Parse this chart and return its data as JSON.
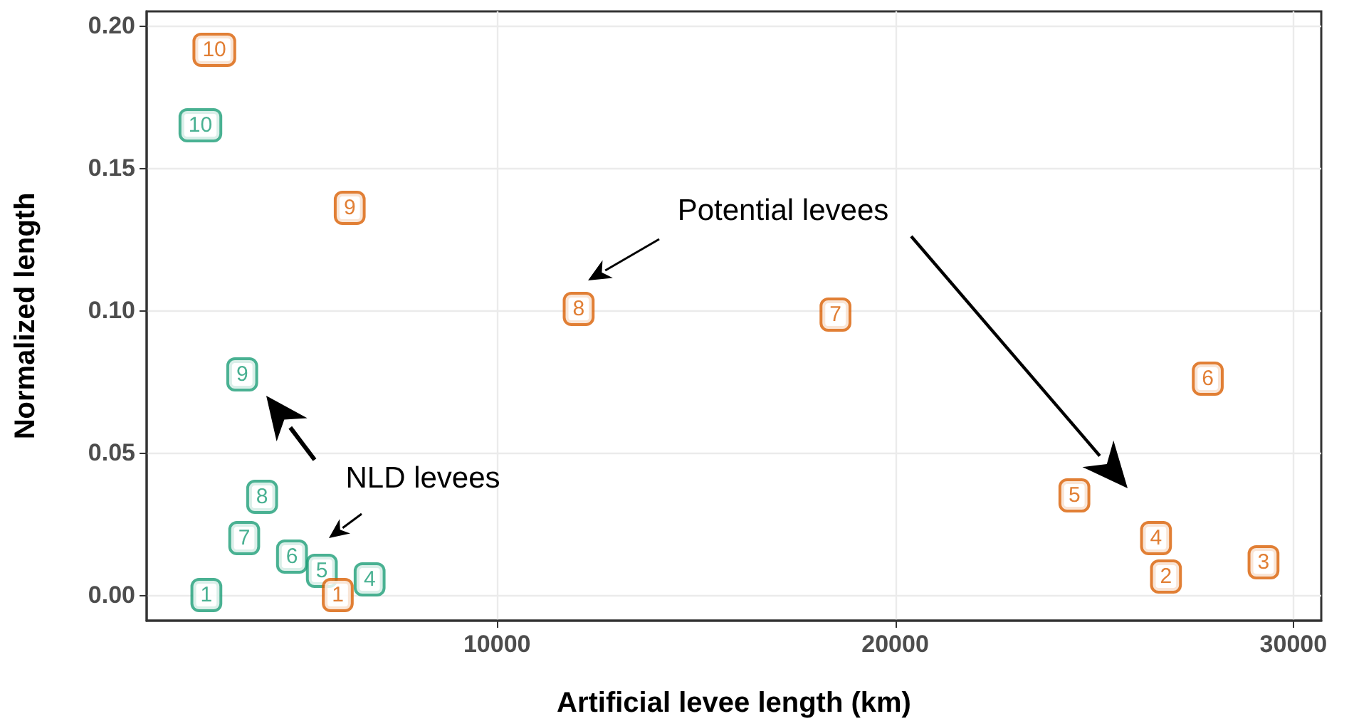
{
  "chart_data": {
    "type": "scatter",
    "xlabel": "Artificial levee length (km)",
    "ylabel": "Normalized length",
    "xlim": [
      1200,
      30700
    ],
    "xticks": [
      10000,
      20000,
      30000
    ],
    "ylim": [
      -0.009,
      0.205
    ],
    "yticks": [
      {
        "value": 0,
        "label": "0.00"
      },
      {
        "value": 0.05,
        "label": "0.05"
      },
      {
        "value": 0.1,
        "label": "0.10"
      },
      {
        "value": 0.15,
        "label": "0.15"
      },
      {
        "value": 0.2,
        "label": "0.20"
      }
    ],
    "grid": true,
    "legend": false,
    "marker": "square",
    "series": [
      {
        "name": "NLD levees",
        "color": "#1b9e77",
        "x": [
          2700,
          null,
          null,
          6800,
          5600,
          4850,
          3650,
          4100,
          3600,
          2550
        ],
        "values": [
          0.0,
          null,
          null,
          0.0055,
          0.0085,
          0.0135,
          0.02,
          0.0345,
          0.0775,
          0.165
        ]
      },
      {
        "name": "Potential levees",
        "color": "#d95f02",
        "x": [
          6000,
          26800,
          29250,
          26550,
          24500,
          27850,
          18500,
          12050,
          6300,
          2900
        ],
        "values": [
          0.0,
          0.0065,
          0.0115,
          0.02,
          0.035,
          0.076,
          0.0985,
          0.1005,
          0.136,
          0.1915
        ]
      }
    ],
    "annotations": [
      {
        "text": "1",
        "x": 2700,
        "y": 0.0
      },
      {
        "text": "4",
        "x": 6800,
        "y": 0.0055
      },
      {
        "text": "5",
        "x": 5600,
        "y": 0.0085
      },
      {
        "text": "6",
        "x": 4850,
        "y": 0.0135
      },
      {
        "text": "7",
        "x": 3650,
        "y": 0.02
      },
      {
        "text": "8",
        "x": 4100,
        "y": 0.0345
      },
      {
        "text": "9",
        "x": 3600,
        "y": 0.0775
      },
      {
        "text": "10",
        "x": 2550,
        "y": 0.165
      },
      {
        "text": "1",
        "x": 6000,
        "y": 0.0
      },
      {
        "text": "2",
        "x": 26800,
        "y": 0.0065
      },
      {
        "text": "3",
        "x": 29250,
        "y": 0.0115
      },
      {
        "text": "4",
        "x": 26550,
        "y": 0.02
      },
      {
        "text": "5",
        "x": 24500,
        "y": 0.035
      },
      {
        "text": "6",
        "x": 27850,
        "y": 0.076
      },
      {
        "text": "7",
        "x": 18500,
        "y": 0.0985
      },
      {
        "text": "8",
        "x": 12050,
        "y": 0.1005
      },
      {
        "text": "9",
        "x": 6300,
        "y": 0.136
      },
      {
        "text": "10",
        "x": 2900,
        "y": 0.1915
      }
    ]
  }
}
